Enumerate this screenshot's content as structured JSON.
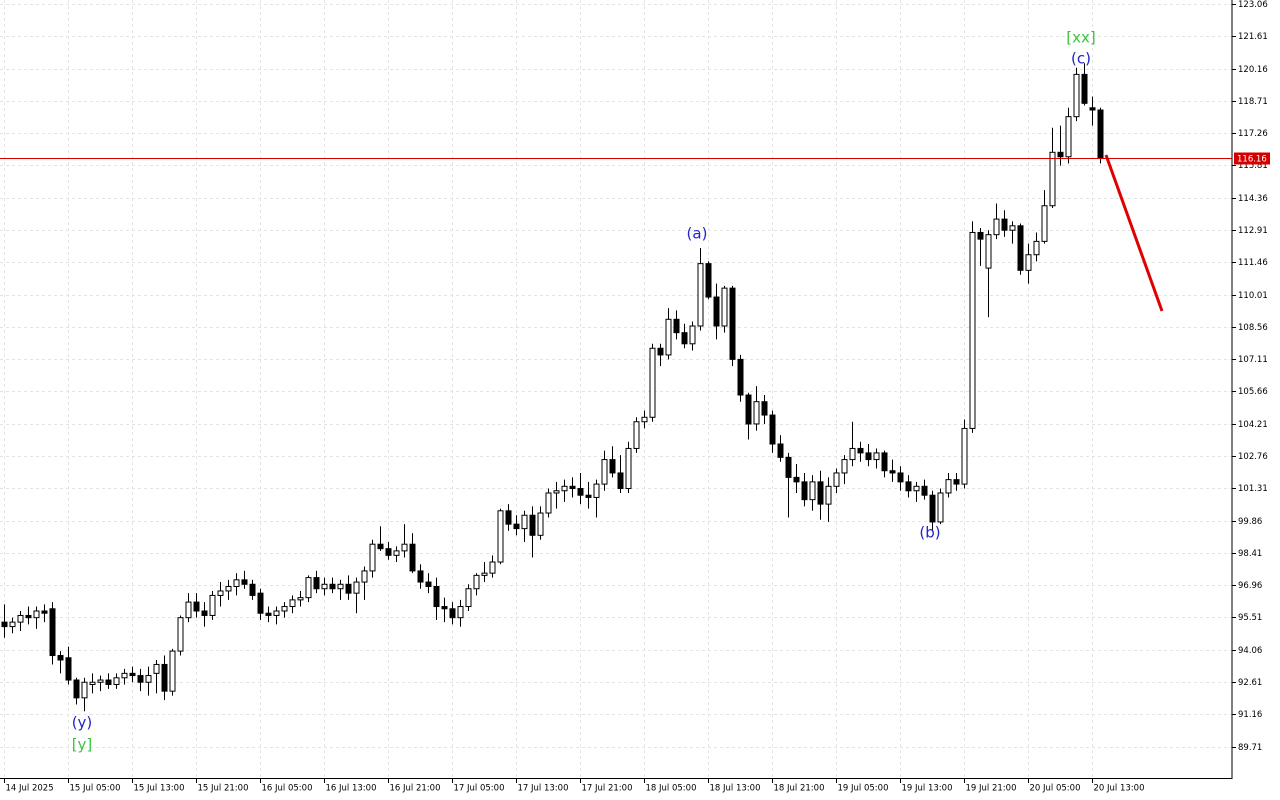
{
  "chart_data": {
    "type": "candlestick",
    "categories": [
      "14 Jul 2025",
      null,
      null,
      null,
      null,
      null,
      null,
      null,
      "15 Jul 05:00",
      null,
      null,
      null,
      null,
      null,
      null,
      null,
      "15 Jul 13:00",
      null,
      null,
      null,
      null,
      null,
      null,
      null,
      "15 Jul 21:00",
      null,
      null,
      null,
      null,
      null,
      null,
      null,
      "16 Jul 05:00",
      null,
      null,
      null,
      null,
      null,
      null,
      null,
      "16 Jul 13:00",
      null,
      null,
      null,
      null,
      null,
      null,
      null,
      "16 Jul 21:00",
      null,
      null,
      null,
      null,
      null,
      null,
      null,
      "17 Jul 05:00",
      null,
      null,
      null,
      null,
      null,
      null,
      null,
      "17 Jul 13:00",
      null,
      null,
      null,
      null,
      null,
      null,
      null,
      "17 Jul 21:00",
      null,
      null,
      null,
      null,
      null,
      null,
      null,
      "18 Jul 05:00",
      null,
      null,
      null,
      null,
      null,
      null,
      null,
      "18 Jul 13:00",
      null,
      null,
      null,
      null,
      null,
      null,
      null,
      "18 Jul 21:00",
      null,
      null,
      null,
      null,
      null,
      null,
      null,
      "19 Jul 05:00",
      null,
      null,
      null,
      null,
      null,
      null,
      null,
      "19 Jul 13:00",
      null,
      null,
      null,
      null,
      null,
      null,
      null,
      "19 Jul 21:00",
      null,
      null,
      null,
      null,
      null,
      null,
      null,
      "20 Jul 05:00",
      null,
      null,
      null,
      null,
      null,
      null,
      null,
      "20 Jul 13:00",
      null
    ],
    "open": [
      95.3,
      95.1,
      95.3,
      95.6,
      95.5,
      95.8,
      95.9,
      93.8,
      93.7,
      92.7,
      91.9,
      92.5,
      92.6,
      92.7,
      92.5,
      92.8,
      93.0,
      92.9,
      92.6,
      93.0,
      93.4,
      92.2,
      94.0,
      95.5,
      96.2,
      95.8,
      95.6,
      96.5,
      96.7,
      96.9,
      97.2,
      97.0,
      96.6,
      95.7,
      95.6,
      95.8,
      96.0,
      96.3,
      96.4,
      97.3,
      96.8,
      97.0,
      96.8,
      97.0,
      96.6,
      97.1,
      97.6,
      98.8,
      98.6,
      98.3,
      98.5,
      98.8,
      97.6,
      97.1,
      96.9,
      96.0,
      95.9,
      95.5,
      96.0,
      96.8,
      97.4,
      97.5,
      98.0,
      100.3,
      99.7,
      99.5,
      100.1,
      99.2,
      100.2,
      101.1,
      101.2,
      101.4,
      101.3,
      101.0,
      100.9,
      101.5,
      102.6,
      102.0,
      101.3,
      103.1,
      104.3,
      104.5,
      107.6,
      107.3,
      108.9,
      108.3,
      107.8,
      108.6,
      111.4,
      109.9,
      108.6,
      110.3,
      107.1,
      105.5,
      104.2,
      105.2,
      104.6,
      103.3,
      102.7,
      101.8,
      101.6,
      100.8,
      101.6,
      100.6,
      101.4,
      102.0,
      102.6,
      103.1,
      102.9,
      102.6,
      102.9,
      102.1,
      102.0,
      101.6,
      101.2,
      101.4,
      101.0,
      99.8,
      101.1,
      101.7,
      101.5,
      104.0,
      112.8,
      111.2,
      112.7,
      113.4,
      112.9,
      113.1,
      111.1,
      111.8,
      112.4,
      114.0,
      116.4,
      116.2,
      118.0,
      119.9,
      118.4,
      118.3
    ],
    "high": [
      96.1,
      95.5,
      95.8,
      96.0,
      96.0,
      96.1,
      96.2,
      94.0,
      94.2,
      92.8,
      92.8,
      93.0,
      92.9,
      93.0,
      93.0,
      93.2,
      93.3,
      93.2,
      93.3,
      93.6,
      93.8,
      94.1,
      95.6,
      96.6,
      96.6,
      96.2,
      96.7,
      97.1,
      97.2,
      97.5,
      97.6,
      97.2,
      96.8,
      96.0,
      96.0,
      96.2,
      96.5,
      96.7,
      97.4,
      97.6,
      97.3,
      97.3,
      97.2,
      97.4,
      97.3,
      97.8,
      99.0,
      99.6,
      98.9,
      98.7,
      99.7,
      99.3,
      97.9,
      97.5,
      97.3,
      96.4,
      96.2,
      96.3,
      97.0,
      97.5,
      98.0,
      98.3,
      100.4,
      100.6,
      100.1,
      100.3,
      100.5,
      100.5,
      101.3,
      101.6,
      101.7,
      101.8,
      102.0,
      101.6,
      101.7,
      103.0,
      103.2,
      102.8,
      103.4,
      104.5,
      104.8,
      107.8,
      107.8,
      109.4,
      109.3,
      108.7,
      108.8,
      112.1,
      111.5,
      110.5,
      110.4,
      110.4,
      107.3,
      105.6,
      105.9,
      105.5,
      104.8,
      103.7,
      102.9,
      102.4,
      102.0,
      101.9,
      102.1,
      101.8,
      102.2,
      102.8,
      104.3,
      103.4,
      103.3,
      103.1,
      103.0,
      102.6,
      102.3,
      101.9,
      101.6,
      101.7,
      101.2,
      101.3,
      102.0,
      102.0,
      104.4,
      113.3,
      113.0,
      112.9,
      114.1,
      113.8,
      113.3,
      113.2,
      112.3,
      112.8,
      114.7,
      117.5,
      117.6,
      118.4,
      120.2,
      120.4,
      118.9,
      118.4
    ],
    "low": [
      94.6,
      94.8,
      94.9,
      95.2,
      95.0,
      95.3,
      93.4,
      93.0,
      92.5,
      91.6,
      91.3,
      92.1,
      92.2,
      92.3,
      92.3,
      92.5,
      92.6,
      92.2,
      92.0,
      92.1,
      91.8,
      92.0,
      93.8,
      95.3,
      95.5,
      95.1,
      95.4,
      96.0,
      96.3,
      96.5,
      96.8,
      96.3,
      95.4,
      95.3,
      95.2,
      95.5,
      95.7,
      96.0,
      96.2,
      96.6,
      96.5,
      96.6,
      96.3,
      96.3,
      95.7,
      96.3,
      97.3,
      98.5,
      98.1,
      98.0,
      98.2,
      97.5,
      96.8,
      96.6,
      95.4,
      95.3,
      95.2,
      95.1,
      95.8,
      96.5,
      97.1,
      97.3,
      97.9,
      99.4,
      99.2,
      98.9,
      98.2,
      99.0,
      100.0,
      100.4,
      100.7,
      100.9,
      100.6,
      100.4,
      100.0,
      101.2,
      101.8,
      101.1,
      101.1,
      102.9,
      104.0,
      104.3,
      106.8,
      107.1,
      108.0,
      107.6,
      107.5,
      108.4,
      109.8,
      108.0,
      108.3,
      106.8,
      105.2,
      103.5,
      103.9,
      104.2,
      102.9,
      102.5,
      100.0,
      101.1,
      100.5,
      100.3,
      99.9,
      99.8,
      101.1,
      101.5,
      102.3,
      102.5,
      102.3,
      102.2,
      101.8,
      101.6,
      101.2,
      100.9,
      100.7,
      100.8,
      99.4,
      99.7,
      100.9,
      101.2,
      101.3,
      103.8,
      111.3,
      109.0,
      112.5,
      112.6,
      112.3,
      110.9,
      110.5,
      111.5,
      112.3,
      113.9,
      115.8,
      115.9,
      117.8,
      118.5,
      117.6,
      115.9
    ],
    "close": [
      95.1,
      95.3,
      95.6,
      95.5,
      95.8,
      95.7,
      93.8,
      93.6,
      92.7,
      91.9,
      92.6,
      92.6,
      92.7,
      92.5,
      92.8,
      93.0,
      92.9,
      92.6,
      92.9,
      93.4,
      92.2,
      94.0,
      95.5,
      96.2,
      95.8,
      95.6,
      96.5,
      96.7,
      96.9,
      97.2,
      97.0,
      96.5,
      95.7,
      95.6,
      95.8,
      96.0,
      96.3,
      96.4,
      97.3,
      96.8,
      97.0,
      96.8,
      97.0,
      96.6,
      97.1,
      97.6,
      98.8,
      98.6,
      98.3,
      98.5,
      98.8,
      97.6,
      97.1,
      96.9,
      96.0,
      95.9,
      95.5,
      96.0,
      96.8,
      97.4,
      97.5,
      98.0,
      100.3,
      99.7,
      99.5,
      100.1,
      99.2,
      100.2,
      101.1,
      101.2,
      101.4,
      101.3,
      101.0,
      100.9,
      101.5,
      102.6,
      102.0,
      101.3,
      103.1,
      104.3,
      104.5,
      107.6,
      107.3,
      108.9,
      108.3,
      107.8,
      108.6,
      111.4,
      109.9,
      108.6,
      110.3,
      107.1,
      105.5,
      104.2,
      105.2,
      104.6,
      103.3,
      102.7,
      101.8,
      101.6,
      100.8,
      101.6,
      100.6,
      101.4,
      102.0,
      102.6,
      103.1,
      102.9,
      102.6,
      102.9,
      102.1,
      102.0,
      101.6,
      101.2,
      101.4,
      101.0,
      99.8,
      101.1,
      101.7,
      101.5,
      104.0,
      112.8,
      112.5,
      112.7,
      113.4,
      112.9,
      113.1,
      111.1,
      111.8,
      112.4,
      114.0,
      116.4,
      116.2,
      118.0,
      119.9,
      118.6,
      118.3,
      116.16
    ],
    "up_color": "#ffffff",
    "down_color": "#000000",
    "ylim": [
      88.3,
      123.24
    ],
    "yticks": [
      123.06,
      121.61,
      120.16,
      118.71,
      117.26,
      115.81,
      114.36,
      112.91,
      111.46,
      110.01,
      108.56,
      107.11,
      105.66,
      104.21,
      102.76,
      101.31,
      99.86,
      98.41,
      96.96,
      95.51,
      94.06,
      92.61,
      91.16,
      89.71
    ],
    "grid": true,
    "current_price": 116.16,
    "current_price_color": "#d40000",
    "annotations": [
      {
        "text": "(y)",
        "color": "#2424c8"
      },
      {
        "text": "[y]",
        "color": "#3cc43c"
      },
      {
        "text": "(a)",
        "color": "#2424c8"
      },
      {
        "text": "(b)",
        "color": "#2424c8"
      },
      {
        "text": "(c)",
        "color": "#2424c8"
      },
      {
        "text": "[xx]",
        "color": "#3cc43c"
      }
    ]
  }
}
